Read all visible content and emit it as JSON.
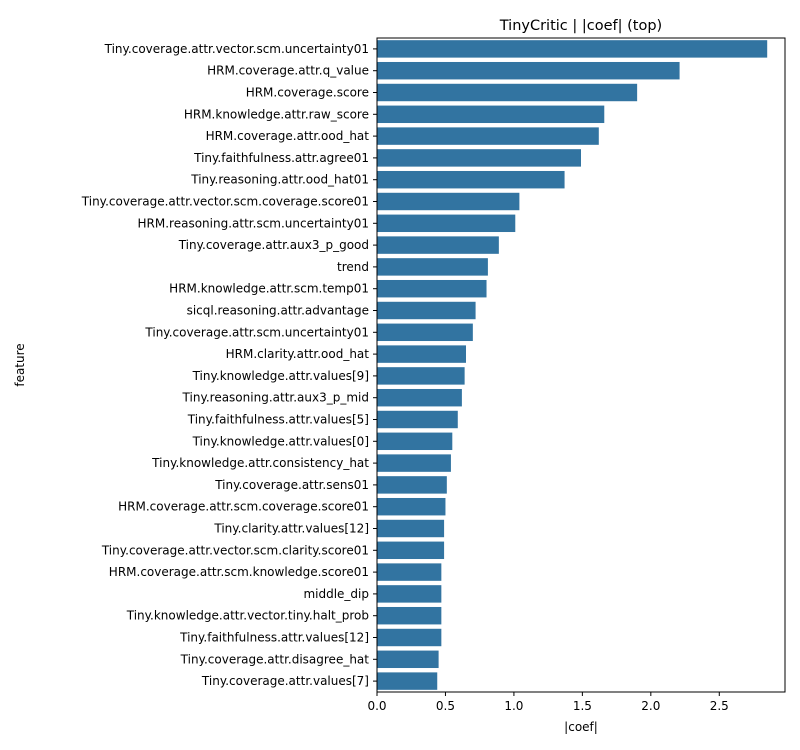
{
  "chart_data": {
    "type": "bar",
    "orientation": "horizontal",
    "title": "TinyCritic | |coef| (top)",
    "xlabel": "|coef|",
    "ylabel": "feature",
    "xlim": [
      0,
      2.98
    ],
    "xticks": [
      0.0,
      0.5,
      1.0,
      1.5,
      2.0,
      2.5
    ],
    "xtick_labels": [
      "0.0",
      "0.5",
      "1.0",
      "1.5",
      "2.0",
      "2.5"
    ],
    "grid": false,
    "bar_color": "#3274a1",
    "categories": [
      "Tiny.coverage.attr.vector.scm.uncertainty01",
      "HRM.coverage.attr.q_value",
      "HRM.coverage.score",
      "HRM.knowledge.attr.raw_score",
      "HRM.coverage.attr.ood_hat",
      "Tiny.faithfulness.attr.agree01",
      "Tiny.reasoning.attr.ood_hat01",
      "Tiny.coverage.attr.vector.scm.coverage.score01",
      "HRM.reasoning.attr.scm.uncertainty01",
      "Tiny.coverage.attr.aux3_p_good",
      "trend",
      "HRM.knowledge.attr.scm.temp01",
      "sicql.reasoning.attr.advantage",
      "Tiny.coverage.attr.scm.uncertainty01",
      "HRM.clarity.attr.ood_hat",
      "Tiny.knowledge.attr.values[9]",
      "Tiny.reasoning.attr.aux3_p_mid",
      "Tiny.faithfulness.attr.values[5]",
      "Tiny.knowledge.attr.values[0]",
      "Tiny.knowledge.attr.consistency_hat",
      "Tiny.coverage.attr.sens01",
      "HRM.coverage.attr.scm.coverage.score01",
      "Tiny.clarity.attr.values[12]",
      "Tiny.coverage.attr.vector.scm.clarity.score01",
      "HRM.coverage.attr.scm.knowledge.score01",
      "middle_dip",
      "Tiny.knowledge.attr.vector.tiny.halt_prob",
      "Tiny.faithfulness.attr.values[12]",
      "Tiny.coverage.attr.disagree_hat",
      "Tiny.coverage.attr.values[7]"
    ],
    "values": [
      2.85,
      2.21,
      1.9,
      1.66,
      1.62,
      1.49,
      1.37,
      1.04,
      1.01,
      0.89,
      0.81,
      0.8,
      0.72,
      0.7,
      0.65,
      0.64,
      0.62,
      0.59,
      0.55,
      0.54,
      0.51,
      0.5,
      0.49,
      0.49,
      0.47,
      0.47,
      0.47,
      0.47,
      0.45,
      0.44
    ]
  }
}
